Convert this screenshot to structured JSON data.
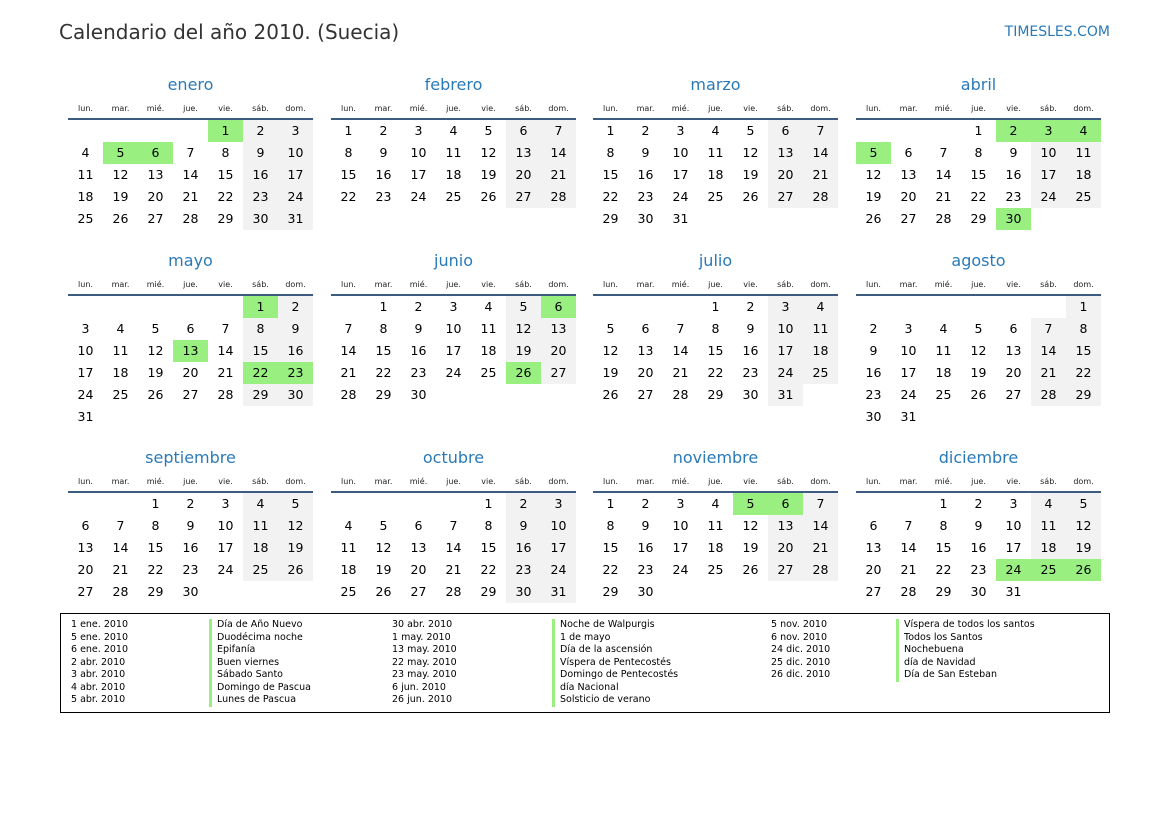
{
  "header": {
    "title": "Calendario del año 2010. (Suecia)",
    "brand": "TIMESLES.COM"
  },
  "year": 2010,
  "weekdays": [
    "lun.",
    "mar.",
    "mié.",
    "jue.",
    "vie.",
    "sáb.",
    "dom."
  ],
  "colors": {
    "accent": "#2a7ab8",
    "holiday": "#99f080",
    "weekend": "#f2f2f2",
    "rule": "#3d5a80"
  },
  "months": [
    {
      "name": "enero",
      "holidays": [
        1,
        5,
        6
      ]
    },
    {
      "name": "febrero",
      "holidays": []
    },
    {
      "name": "marzo",
      "holidays": []
    },
    {
      "name": "abril",
      "holidays": [
        2,
        3,
        4,
        5,
        30
      ]
    },
    {
      "name": "mayo",
      "holidays": [
        1,
        13,
        22,
        23
      ]
    },
    {
      "name": "junio",
      "holidays": [
        6,
        26
      ]
    },
    {
      "name": "julio",
      "holidays": []
    },
    {
      "name": "agosto",
      "holidays": []
    },
    {
      "name": "septiembre",
      "holidays": []
    },
    {
      "name": "octubre",
      "holidays": []
    },
    {
      "name": "noviembre",
      "holidays": [
        5,
        6
      ]
    },
    {
      "name": "diciembre",
      "holidays": [
        24,
        25,
        26
      ]
    }
  ],
  "legend": [
    {
      "date": "1 ene. 2010",
      "name": "Día de Año Nuevo"
    },
    {
      "date": "5 ene. 2010",
      "name": "Duodécima noche"
    },
    {
      "date": "6 ene. 2010",
      "name": "Epifanía"
    },
    {
      "date": "2 abr. 2010",
      "name": "Buen viernes"
    },
    {
      "date": "3 abr. 2010",
      "name": "Sábado Santo"
    },
    {
      "date": "4 abr. 2010",
      "name": "Domingo de Pascua"
    },
    {
      "date": "5 abr. 2010",
      "name": "Lunes de Pascua"
    },
    {
      "date": "30 abr. 2010",
      "name": "Noche de Walpurgis"
    },
    {
      "date": "1 may. 2010",
      "name": "1 de mayo"
    },
    {
      "date": "13 may. 2010",
      "name": "Día de la ascensión"
    },
    {
      "date": "22 may. 2010",
      "name": "Víspera de Pentecostés"
    },
    {
      "date": "23 may. 2010",
      "name": "Domingo de Pentecostés"
    },
    {
      "date": "6 jun. 2010",
      "name": "día Nacional"
    },
    {
      "date": "26 jun. 2010",
      "name": "Solsticio de verano"
    },
    {
      "date": "5 nov. 2010",
      "name": "Víspera de todos los santos"
    },
    {
      "date": "6 nov. 2010",
      "name": "Todos los Santos"
    },
    {
      "date": "24 dic. 2010",
      "name": "Nochebuena"
    },
    {
      "date": "25 dic. 2010",
      "name": "día de Navidad"
    },
    {
      "date": "26 dic. 2010",
      "name": "Día de San Esteban"
    }
  ]
}
